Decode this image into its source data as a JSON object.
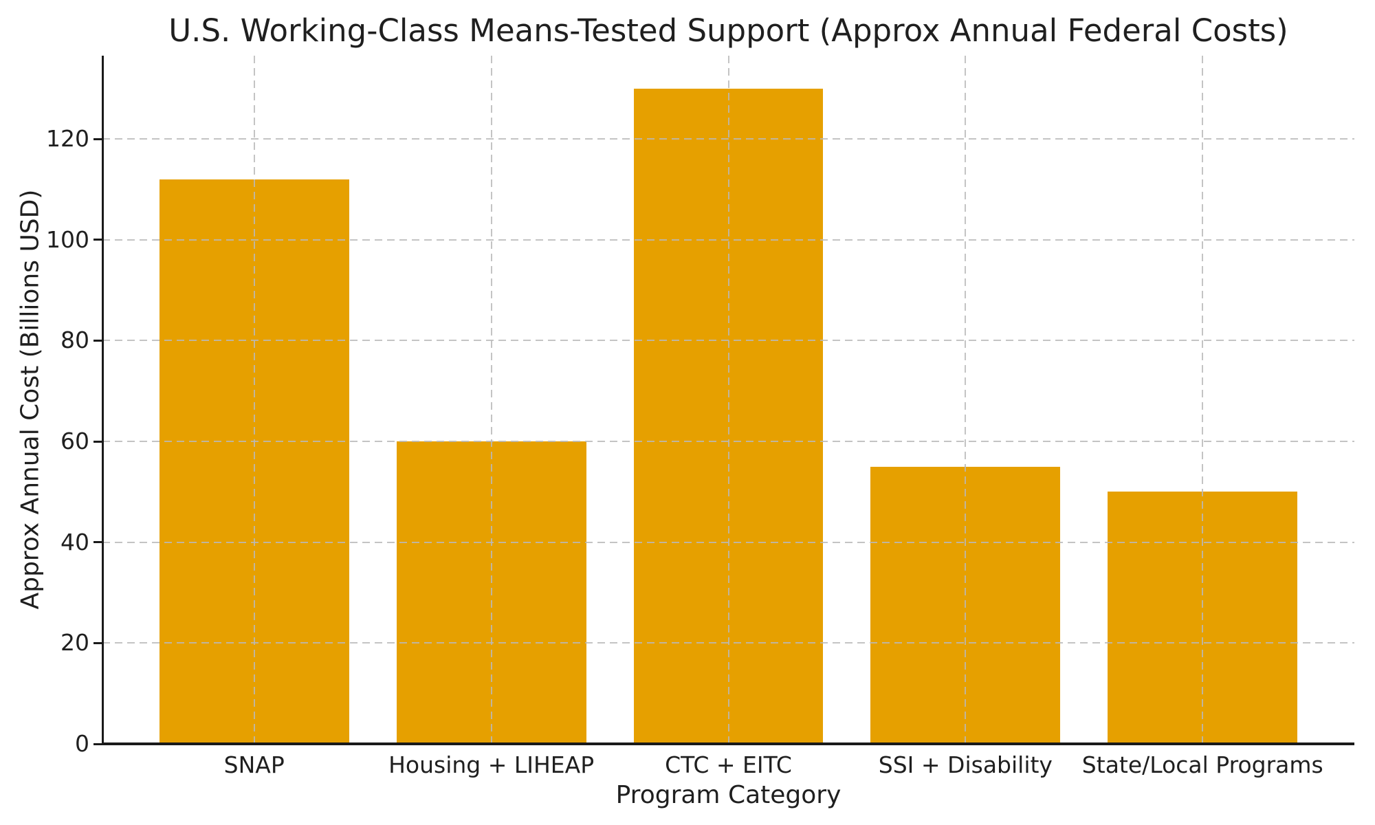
{
  "chart_data": {
    "type": "bar",
    "title": "U.S. Working-Class Means-Tested Support (Approx Annual Federal Costs)",
    "xlabel": "Program Category",
    "ylabel": "Approx Annual Cost (Billions USD)",
    "categories": [
      "SNAP",
      "Housing + LIHEAP",
      "CTC + EITC",
      "SSI + Disability",
      "State/Local Programs"
    ],
    "values": [
      112,
      60,
      130,
      55,
      50
    ],
    "yticks": [
      0,
      20,
      40,
      60,
      80,
      100,
      120
    ],
    "ylim": [
      0,
      136.5
    ],
    "grid": "dashed, horizontal and vertical, drawn above bars",
    "legend": "none",
    "colors": {
      "bar": "#E6A000",
      "grid": "#BDBDBD",
      "axis": "#1A1A1A",
      "text": "#1F1F1F",
      "background": "#FFFFFF"
    }
  }
}
